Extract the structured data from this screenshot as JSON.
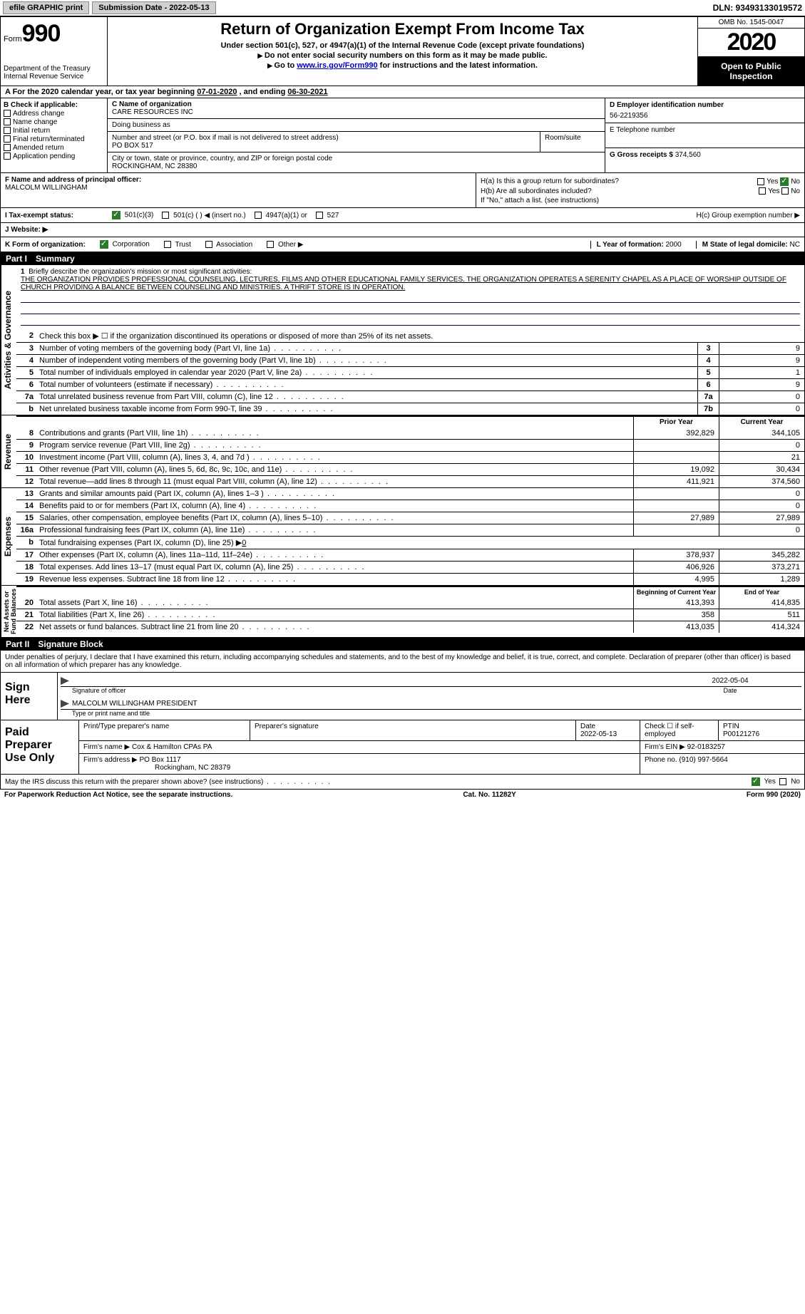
{
  "topbar": {
    "efile": "efile GRAPHIC print",
    "submission_label": "Submission Date - 2022-05-13",
    "dln": "DLN: 93493133019572"
  },
  "header": {
    "form_label": "Form",
    "form_num": "990",
    "dept": "Department of the Treasury\nInternal Revenue Service",
    "title": "Return of Organization Exempt From Income Tax",
    "sub1": "Under section 501(c), 527, or 4947(a)(1) of the Internal Revenue Code (except private foundations)",
    "sub2": "Do not enter social security numbers on this form as it may be made public.",
    "sub3_pre": "Go to ",
    "sub3_link": "www.irs.gov/Form990",
    "sub3_post": " for instructions and the latest information.",
    "omb": "OMB No. 1545-0047",
    "year": "2020",
    "inspection": "Open to Public Inspection"
  },
  "period": {
    "label": "A For the 2020 calendar year, or tax year beginning ",
    "begin": "07-01-2020",
    "mid": "   , and ending ",
    "end": "06-30-2021"
  },
  "section_b": {
    "header": "B Check if applicable:",
    "opts": [
      "Address change",
      "Name change",
      "Initial return",
      "Final return/terminated",
      "Amended return",
      "Application pending"
    ]
  },
  "section_c": {
    "name_label": "C Name of organization",
    "name": "CARE RESOURCES INC",
    "dba_label": "Doing business as",
    "addr_label": "Number and street (or P.O. box if mail is not delivered to street address)",
    "addr": "PO BOX 517",
    "room_label": "Room/suite",
    "city_label": "City or town, state or province, country, and ZIP or foreign postal code",
    "city": "ROCKINGHAM, NC  28380"
  },
  "section_d": {
    "label": "D Employer identification number",
    "value": "56-2219356"
  },
  "section_e": {
    "label": "E Telephone number",
    "value": ""
  },
  "section_g": {
    "label": "G Gross receipts $",
    "value": "374,560"
  },
  "section_f": {
    "label": "F  Name and address of principal officer:",
    "name": "MALCOLM WILLINGHAM"
  },
  "section_h": {
    "ha": "H(a)  Is this a group return for subordinates?",
    "hb": "H(b)  Are all subordinates included?",
    "hb_note": "If \"No,\" attach a list. (see instructions)",
    "hc": "H(c)  Group exemption number ▶",
    "yes": "Yes",
    "no": "No"
  },
  "section_i": {
    "label": "I   Tax-exempt status:",
    "opts": [
      "501(c)(3)",
      "501(c) (  ) ◀ (insert no.)",
      "4947(a)(1) or",
      "527"
    ]
  },
  "section_j": {
    "label": "J   Website: ▶"
  },
  "section_k": {
    "label": "K Form of organization:",
    "opts": [
      "Corporation",
      "Trust",
      "Association",
      "Other ▶"
    ]
  },
  "section_l": {
    "label": "L Year of formation:",
    "value": "2000"
  },
  "section_m": {
    "label": "M State of legal domicile:",
    "value": "NC"
  },
  "part1": {
    "num": "Part I",
    "title": "Summary"
  },
  "mission": {
    "num": "1",
    "label": "Briefly describe the organization's mission or most significant activities:",
    "text": "THE ORGANIZATION PROVIDES PROFESSIONAL COUNSELING, LECTURES, FILMS AND OTHER EDUCATIONAL FAMILY SERVICES. THE ORGANIZATION OPERATES A SERENITY CHAPEL AS A PLACE OF WORSHIP OUTSIDE OF CHURCH PROVIDING A BALANCE BETWEEN COUNSELING AND MINISTRIES. A THRIFT STORE IS IN OPERATION."
  },
  "gov_lines": [
    {
      "num": "2",
      "text": "Check this box ▶ ☐ if the organization discontinued its operations or disposed of more than 25% of its net assets.",
      "box": "",
      "val": ""
    },
    {
      "num": "3",
      "text": "Number of voting members of the governing body (Part VI, line 1a)",
      "box": "3",
      "val": "9"
    },
    {
      "num": "4",
      "text": "Number of independent voting members of the governing body (Part VI, line 1b)",
      "box": "4",
      "val": "9"
    },
    {
      "num": "5",
      "text": "Total number of individuals employed in calendar year 2020 (Part V, line 2a)",
      "box": "5",
      "val": "1"
    },
    {
      "num": "6",
      "text": "Total number of volunteers (estimate if necessary)",
      "box": "6",
      "val": "9"
    },
    {
      "num": "7a",
      "text": "Total unrelated business revenue from Part VIII, column (C), line 12",
      "box": "7a",
      "val": "0"
    },
    {
      "num": "b",
      "text": "Net unrelated business taxable income from Form 990-T, line 39",
      "box": "7b",
      "val": "0"
    }
  ],
  "col_headers": {
    "prior": "Prior Year",
    "current": "Current Year",
    "boy": "Beginning of Current Year",
    "eoy": "End of Year"
  },
  "revenue_lines": [
    {
      "num": "8",
      "text": "Contributions and grants (Part VIII, line 1h)",
      "prior": "392,829",
      "current": "344,105"
    },
    {
      "num": "9",
      "text": "Program service revenue (Part VIII, line 2g)",
      "prior": "",
      "current": "0"
    },
    {
      "num": "10",
      "text": "Investment income (Part VIII, column (A), lines 3, 4, and 7d )",
      "prior": "",
      "current": "21"
    },
    {
      "num": "11",
      "text": "Other revenue (Part VIII, column (A), lines 5, 6d, 8c, 9c, 10c, and 11e)",
      "prior": "19,092",
      "current": "30,434"
    },
    {
      "num": "12",
      "text": "Total revenue—add lines 8 through 11 (must equal Part VIII, column (A), line 12)",
      "prior": "411,921",
      "current": "374,560"
    }
  ],
  "expense_lines": [
    {
      "num": "13",
      "text": "Grants and similar amounts paid (Part IX, column (A), lines 1–3 )",
      "prior": "",
      "current": "0"
    },
    {
      "num": "14",
      "text": "Benefits paid to or for members (Part IX, column (A), line 4)",
      "prior": "",
      "current": "0"
    },
    {
      "num": "15",
      "text": "Salaries, other compensation, employee benefits (Part IX, column (A), lines 5–10)",
      "prior": "27,989",
      "current": "27,989"
    },
    {
      "num": "16a",
      "text": "Professional fundraising fees (Part IX, column (A), line 11e)",
      "prior": "",
      "current": "0"
    },
    {
      "num": "b",
      "text": "Total fundraising expenses (Part IX, column (D), line 25) ▶0",
      "prior": "—",
      "current": "—"
    },
    {
      "num": "17",
      "text": "Other expenses (Part IX, column (A), lines 11a–11d, 11f–24e)",
      "prior": "378,937",
      "current": "345,282"
    },
    {
      "num": "18",
      "text": "Total expenses. Add lines 13–17 (must equal Part IX, column (A), line 25)",
      "prior": "406,926",
      "current": "373,271"
    },
    {
      "num": "19",
      "text": "Revenue less expenses. Subtract line 18 from line 12",
      "prior": "4,995",
      "current": "1,289"
    }
  ],
  "asset_lines": [
    {
      "num": "20",
      "text": "Total assets (Part X, line 16)",
      "prior": "413,393",
      "current": "414,835"
    },
    {
      "num": "21",
      "text": "Total liabilities (Part X, line 26)",
      "prior": "358",
      "current": "511"
    },
    {
      "num": "22",
      "text": "Net assets or fund balances. Subtract line 21 from line 20",
      "prior": "413,035",
      "current": "414,324"
    }
  ],
  "vert_labels": {
    "gov": "Activities & Governance",
    "rev": "Revenue",
    "exp": "Expenses",
    "net": "Net Assets or\nFund Balances"
  },
  "part2": {
    "num": "Part II",
    "title": "Signature Block"
  },
  "sig": {
    "declare": "Under penalties of perjury, I declare that I have examined this return, including accompanying schedules and statements, and to the best of my knowledge and belief, it is true, correct, and complete. Declaration of preparer (other than officer) is based on all information of which preparer has any knowledge.",
    "sign_here": "Sign Here",
    "sig_label": "Signature of officer",
    "date": "2022-05-04",
    "date_label": "Date",
    "name": "MALCOLM WILLINGHAM  PRESIDENT",
    "name_label": "Type or print name and title"
  },
  "preparer": {
    "label": "Paid Preparer Use Only",
    "headers": {
      "name": "Print/Type preparer's name",
      "sig": "Preparer's signature",
      "date": "Date",
      "check": "Check ☐ if self-employed",
      "ptin": "PTIN"
    },
    "date": "2022-05-13",
    "ptin": "P00121276",
    "firm_name_label": "Firm's name    ▶",
    "firm_name": "Cox & Hamilton CPAs PA",
    "firm_ein_label": "Firm's EIN ▶",
    "firm_ein": "92-0183257",
    "firm_addr_label": "Firm's address ▶",
    "firm_addr": "PO Box 1117",
    "firm_city": "Rockingham, NC  28379",
    "phone_label": "Phone no.",
    "phone": "(910) 997-5664"
  },
  "footer": {
    "discuss": "May the IRS discuss this return with the preparer shown above? (see instructions)",
    "yes": "Yes",
    "no": "No",
    "paperwork": "For Paperwork Reduction Act Notice, see the separate instructions.",
    "cat": "Cat. No. 11282Y",
    "form": "Form 990 (2020)"
  }
}
